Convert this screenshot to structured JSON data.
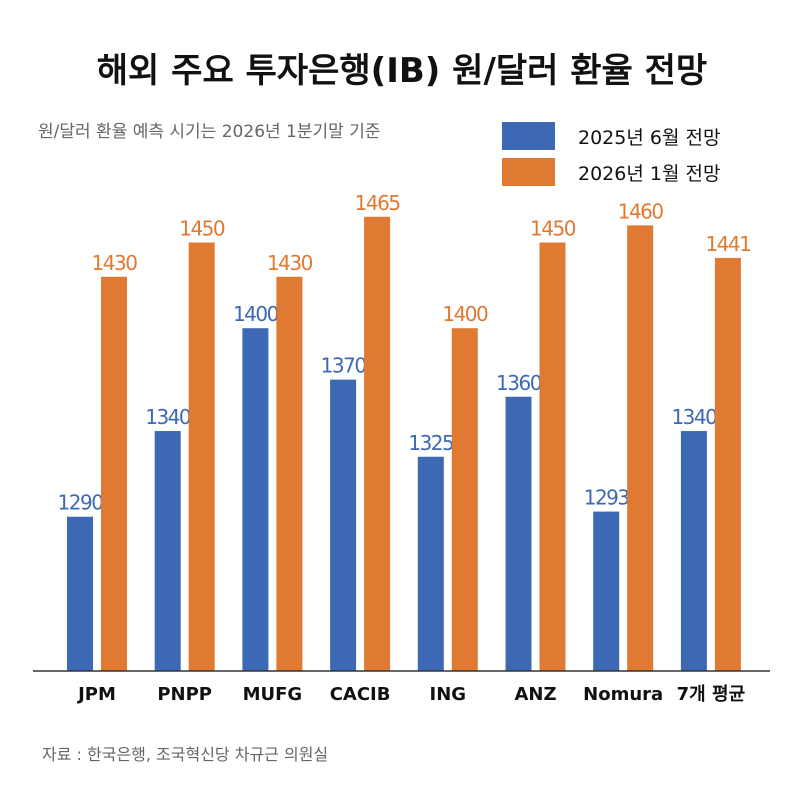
{
  "chart_data": {
    "type": "bar",
    "title": "해외 주요 투자은행(IB) 원/달러 환율 전망",
    "subtitle": "원/달러 환율 예측 시기는 2026년 1분기말 기준",
    "categories": [
      "JPM",
      "PNPP",
      "MUFG",
      "CACIB",
      "ING",
      "ANZ",
      "Nomura",
      "7개 평균"
    ],
    "series": [
      {
        "name": "2025년 6월 전망",
        "color": "#3d69b4",
        "values": [
          1290,
          1340,
          1400,
          1370,
          1325,
          1360,
          1293,
          1340
        ]
      },
      {
        "name": "2026년 1월 전망",
        "color": "#e07a33",
        "values": [
          1430,
          1450,
          1430,
          1465,
          1400,
          1450,
          1460,
          1441
        ]
      }
    ],
    "ylim": [
      1200,
      1480
    ],
    "grid": false,
    "legend_position": "top-right",
    "source": "자료 : 한국은행, 조국혁신당 차규근 의원실"
  }
}
